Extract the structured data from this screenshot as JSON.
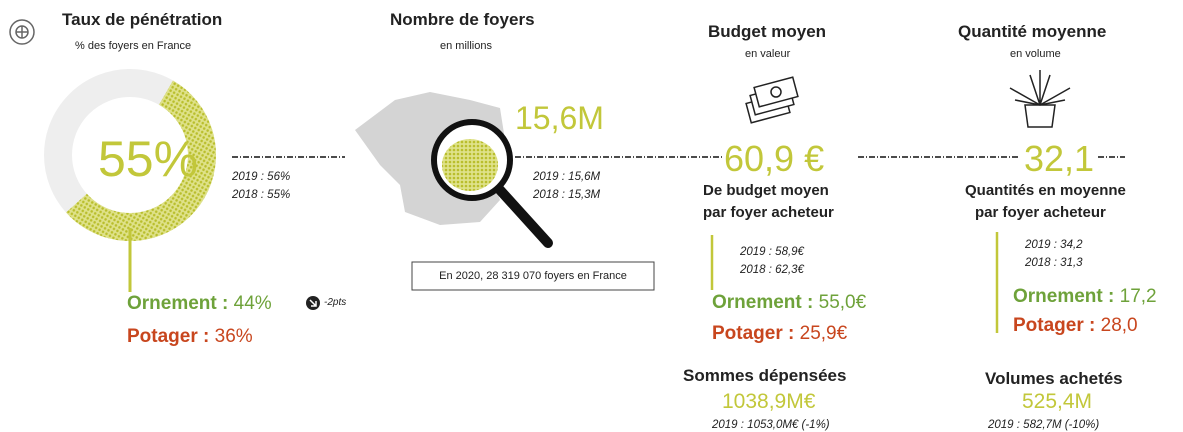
{
  "penetration": {
    "title": "Taux de pénétration",
    "subtitle": "% des foyers en France",
    "donut": {
      "value": 55,
      "label": "55%"
    },
    "history": [
      "2019 : 56%",
      "2018 : 55%"
    ],
    "ornement": {
      "label": "Ornement :",
      "value": "44%",
      "note": "-2pts"
    },
    "potager": {
      "label": "Potager :",
      "value": "36%"
    }
  },
  "households": {
    "title": "Nombre de foyers",
    "subtitle": "en millions",
    "value": "15,6M",
    "history": [
      "2019 : 15,6M",
      "2018 : 15,3M"
    ],
    "note": "En 2020, 28 319 070 foyers en France"
  },
  "budget": {
    "title": "Budget moyen",
    "subtitle": "en valeur",
    "value": "60,9 €",
    "caption": [
      "De budget moyen",
      "par foyer acheteur"
    ],
    "history": [
      "2019 : 58,9€",
      "2018 : 62,3€"
    ],
    "ornement": {
      "label": "Ornement :",
      "value": "55,0€"
    },
    "potager": {
      "label": "Potager :",
      "value": "25,9€"
    },
    "total": {
      "title": "Sommes dépensées",
      "value": "1038,9M€",
      "history": "2019 : 1053,0M€ (-1%)"
    }
  },
  "quantity": {
    "title": "Quantité moyenne",
    "subtitle": "en volume",
    "value": "32,1",
    "caption": [
      "Quantités en moyenne",
      "par foyer acheteur"
    ],
    "history": [
      "2019 : 34,2",
      "2018 : 31,3"
    ],
    "ornement": {
      "label": "Ornement :",
      "value": "17,2"
    },
    "potager": {
      "label": "Potager :",
      "value": "28,0"
    },
    "total": {
      "title": "Volumes achetés",
      "value": "525,4M",
      "history": "2019 : 582,7M (-10%)"
    }
  }
}
